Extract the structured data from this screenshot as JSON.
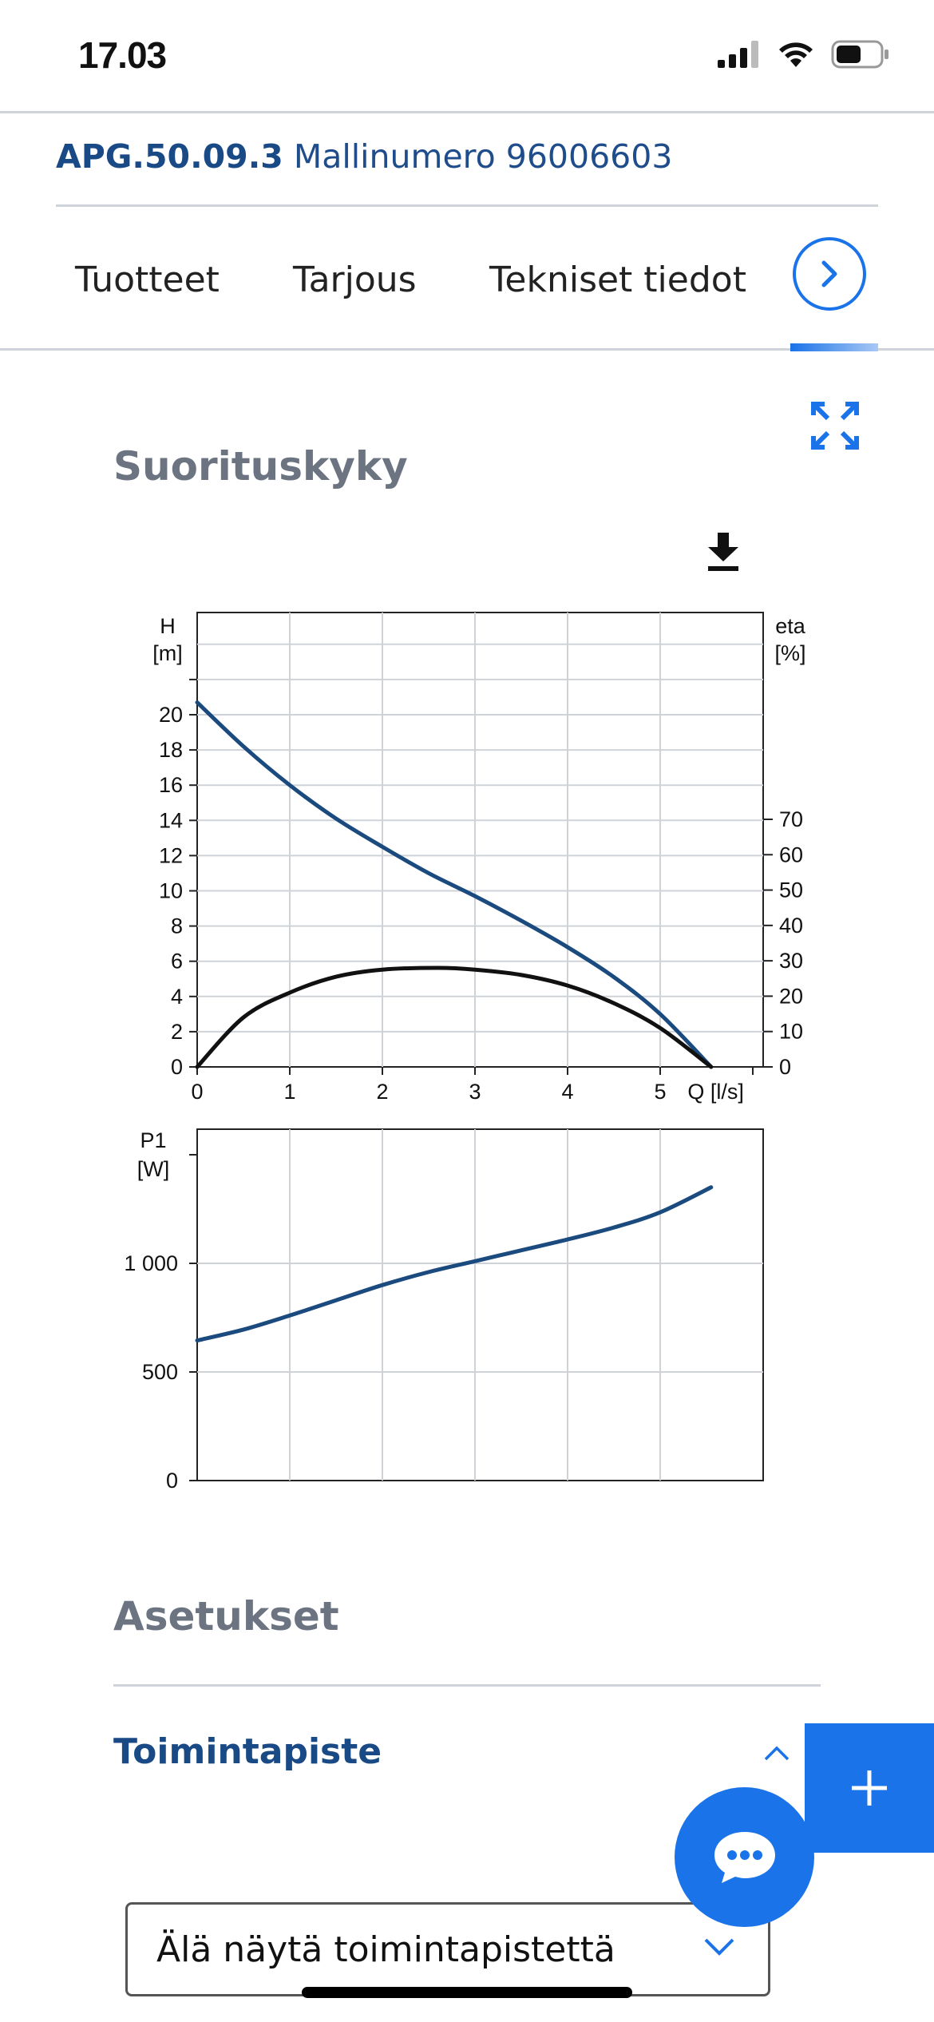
{
  "status_bar": {
    "time": "17.03"
  },
  "product": {
    "name": "APG.50.09.3",
    "model_text": "Mallinumero 96006603"
  },
  "tabs": [
    {
      "label": "Tuotteet"
    },
    {
      "label": "Tarjous"
    },
    {
      "label": "Tekniset tiedot"
    }
  ],
  "performance": {
    "title": "Suorituskyky"
  },
  "chart_data": [
    {
      "type": "line",
      "x_label": "Q [l/s]",
      "y_label": "H\n[m]",
      "y2_label": "eta\n[%]",
      "xlim": [
        0,
        6
      ],
      "ylim": [
        0,
        22
      ],
      "y2lim": [
        0,
        110
      ],
      "x_ticks": [
        "0",
        "1",
        "2",
        "3",
        "4",
        "5"
      ],
      "y_ticks": [
        "0",
        "2",
        "4",
        "6",
        "8",
        "10",
        "12",
        "14",
        "16",
        "18",
        "20"
      ],
      "y2_ticks": [
        "0",
        "10",
        "20",
        "30",
        "40",
        "50",
        "60",
        "70"
      ],
      "grid": true,
      "series": [
        {
          "axis": "left",
          "color": "#1a4a7e",
          "x": [
            0,
            0.5,
            1,
            1.5,
            2,
            2.5,
            3,
            3.5,
            4,
            4.5,
            5,
            5.55
          ],
          "y": [
            20.7,
            18.2,
            16.0,
            14.1,
            12.5,
            11.0,
            9.7,
            8.3,
            6.8,
            5.1,
            3.0,
            0
          ]
        },
        {
          "axis": "right",
          "color": "#111111",
          "x": [
            0,
            0.5,
            1,
            1.5,
            2,
            2.6,
            3,
            3.5,
            4,
            4.5,
            5,
            5.55
          ],
          "y": [
            0,
            14,
            21,
            25.5,
            27.5,
            28,
            27.5,
            26,
            23,
            18,
            11,
            0
          ]
        }
      ]
    },
    {
      "type": "line",
      "y_label": "P1\n[W]",
      "xlim": [
        0,
        6
      ],
      "ylim": [
        0,
        1500
      ],
      "y_ticks": [
        "0",
        "500",
        "1 000"
      ],
      "y_tick_values": [
        0,
        500,
        1000
      ],
      "grid": true,
      "series": [
        {
          "color": "#1a4a7e",
          "x": [
            0,
            0.5,
            1,
            1.5,
            2,
            2.5,
            3,
            3.5,
            4,
            4.5,
            5,
            5.55
          ],
          "y": [
            645,
            695,
            760,
            830,
            900,
            960,
            1010,
            1060,
            1110,
            1165,
            1235,
            1350
          ]
        }
      ]
    }
  ],
  "settings": {
    "title": "Asetukset"
  },
  "operating_point": {
    "title": "Toimintapiste",
    "select_value": "Älä näytä toimintapistettä"
  }
}
